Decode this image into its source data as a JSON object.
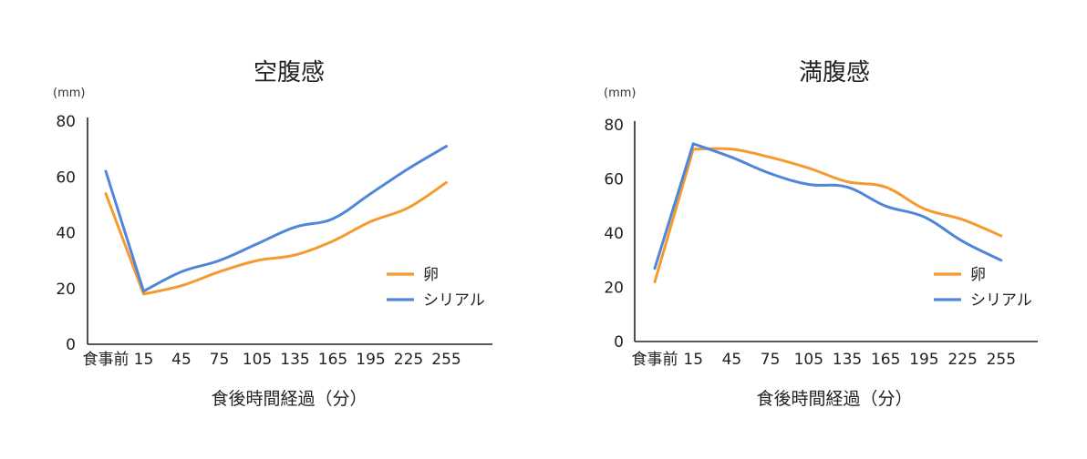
{
  "colors": {
    "egg": "#F59A2E",
    "cereal": "#4F86D9",
    "axis": "#222222"
  },
  "chart_data": [
    {
      "type": "line",
      "title": "空腹感",
      "unit": "(mm)",
      "xlabel": "食後時間経過（分）",
      "categories": [
        "食事前",
        "15",
        "45",
        "75",
        "105",
        "135",
        "165",
        "195",
        "225",
        "255"
      ],
      "ylim": [
        0,
        80
      ],
      "yticks": [
        "0",
        "20",
        "40",
        "60",
        "80"
      ],
      "grid": false,
      "legend_position": "right",
      "series": [
        {
          "name": "卵",
          "color": "#F59A2E",
          "values": [
            54,
            18,
            21,
            26,
            30,
            32,
            37,
            44,
            49,
            58
          ]
        },
        {
          "name": "シリアル",
          "color": "#4F86D9",
          "values": [
            62,
            19,
            26,
            30,
            36,
            42,
            45,
            54,
            63,
            71
          ]
        }
      ]
    },
    {
      "type": "line",
      "title": "満腹感",
      "unit": "(mm)",
      "xlabel": "食後時間経過（分）",
      "categories": [
        "食事前",
        "15",
        "45",
        "75",
        "105",
        "135",
        "165",
        "195",
        "225",
        "255"
      ],
      "ylim": [
        0,
        80
      ],
      "yticks": [
        "0",
        "20",
        "40",
        "60",
        "80"
      ],
      "grid": false,
      "legend_position": "right",
      "series": [
        {
          "name": "卵",
          "color": "#F59A2E",
          "values": [
            22,
            71,
            71,
            68,
            64,
            59,
            57,
            49,
            45,
            39
          ]
        },
        {
          "name": "シリアル",
          "color": "#4F86D9",
          "values": [
            27,
            73,
            68,
            62,
            58,
            57,
            50,
            46,
            37,
            30
          ]
        }
      ]
    }
  ]
}
